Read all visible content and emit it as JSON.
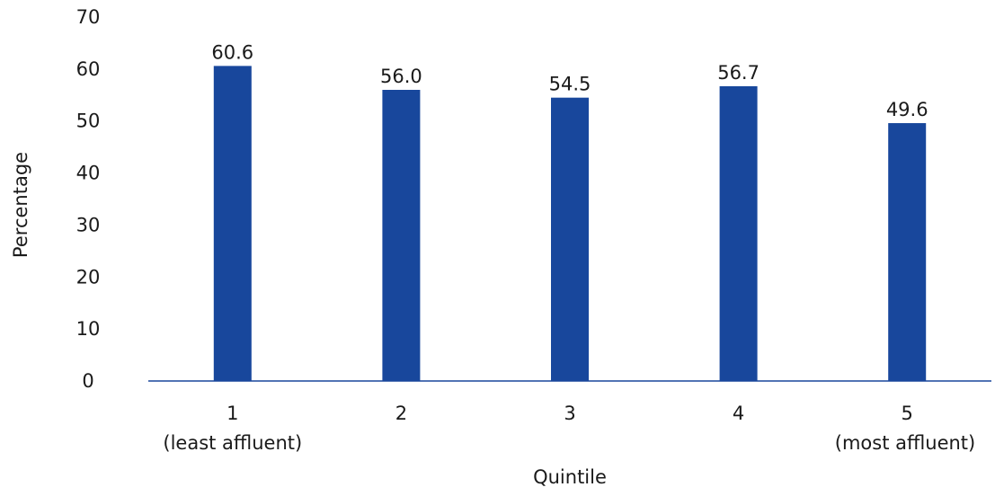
{
  "chart_data": {
    "type": "bar",
    "categories": [
      "1",
      "2",
      "3",
      "4",
      "5"
    ],
    "category_sublabels": [
      "(least affluent)",
      "",
      "",
      "",
      "(most affluent)"
    ],
    "values": [
      60.6,
      56.0,
      54.5,
      56.7,
      49.6
    ],
    "value_labels": [
      "60.6",
      "56.0",
      "54.5",
      "56.7",
      "49.6"
    ],
    "title": "",
    "xlabel": "Quintile",
    "ylabel": "Percentage",
    "ylim": [
      0,
      70
    ],
    "yticks": [
      0,
      10,
      20,
      30,
      40,
      50,
      60,
      70
    ],
    "grid": false,
    "legend": "none",
    "colors": {
      "bar": "#18479C",
      "axis": "#18479C",
      "text": "#1a1a1a"
    }
  }
}
